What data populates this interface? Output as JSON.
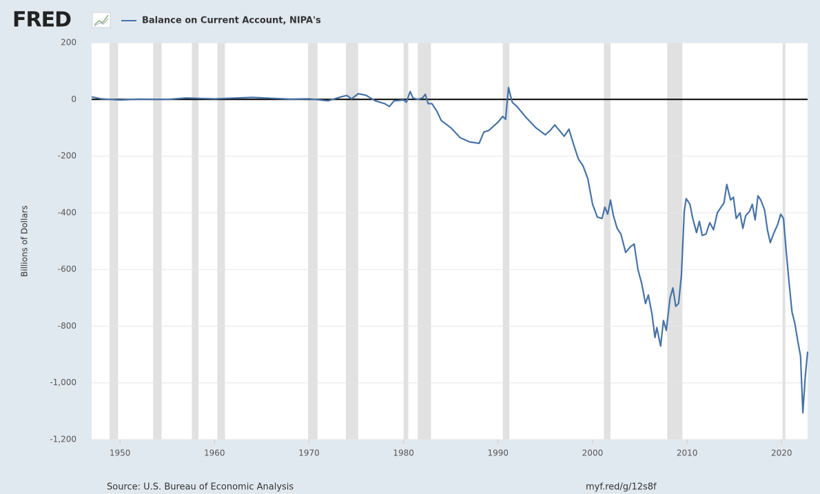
{
  "logo": "FRED",
  "chart_data": {
    "type": "line",
    "title": "Balance on Current Account, NIPA's",
    "y_label": "Billions of Dollars",
    "source": "Source: U.S. Bureau of Economic Analysis",
    "link": "myf.red/g/12s8f",
    "xlim": [
      1947,
      2022.75
    ],
    "xticks": [
      1950,
      1960,
      1970,
      1980,
      1990,
      2000,
      2010,
      2020
    ],
    "ylim": [
      -1200,
      200
    ],
    "yticks": [
      {
        "value": -1200,
        "label": "-1,200"
      },
      {
        "value": -1000,
        "label": "-1,000"
      },
      -800,
      -600,
      -400,
      -200,
      0,
      200
    ],
    "grid": true,
    "recessions": [
      [
        1948.9,
        1949.8
      ],
      [
        1953.5,
        1954.4
      ],
      [
        1957.6,
        1958.3
      ],
      [
        1960.3,
        1961.1
      ],
      [
        1969.9,
        1970.9
      ],
      [
        1973.9,
        1975.2
      ],
      [
        1980.0,
        1980.5
      ],
      [
        1981.5,
        1982.9
      ],
      [
        1990.5,
        1991.2
      ],
      [
        2001.2,
        2001.9
      ],
      [
        2007.9,
        2009.5
      ],
      [
        2020.1,
        2020.4
      ]
    ],
    "x": [
      1947,
      1948,
      1950,
      1952,
      1955,
      1957,
      1960,
      1964,
      1968,
      1970,
      1972,
      1973.5,
      1974,
      1974.5,
      1975.2,
      1976,
      1977,
      1978,
      1978.5,
      1979,
      1980,
      1980.3,
      1980.7,
      1981,
      1981.5,
      1982,
      1982.3,
      1982.6,
      1983,
      1983.5,
      1984,
      1985,
      1986,
      1987,
      1988,
      1988.5,
      1989,
      1990,
      1990.5,
      1990.8,
      1991.1,
      1991.5,
      1992,
      1993,
      1994,
      1995,
      1995.5,
      1996,
      1996.5,
      1997,
      1997.5,
      1998,
      1998.5,
      1999,
      1999.5,
      2000,
      2000.5,
      2001,
      2001.3,
      2001.6,
      2001.9,
      2002.2,
      2002.6,
      2003,
      2003.5,
      2004,
      2004.4,
      2004.8,
      2005.2,
      2005.6,
      2005.9,
      2006.3,
      2006.6,
      2006.8,
      2007.2,
      2007.5,
      2007.8,
      2008.2,
      2008.5,
      2008.8,
      2009.1,
      2009.4,
      2009.7,
      2009.9,
      2010.3,
      2010.6,
      2011,
      2011.3,
      2011.6,
      2012,
      2012.4,
      2012.8,
      2013.2,
      2013.6,
      2013.9,
      2014.2,
      2014.6,
      2014.9,
      2015.2,
      2015.6,
      2015.9,
      2016.2,
      2016.6,
      2016.9,
      2017.2,
      2017.5,
      2017.8,
      2018.2,
      2018.5,
      2018.8,
      2019.2,
      2019.6,
      2019.9,
      2020.2,
      2020.5,
      2020.8,
      2021.1,
      2021.4,
      2021.7,
      2022,
      2022.25,
      2022.5,
      2022.75
    ],
    "series": [
      {
        "name": "Balance on Current Account, NIPA's",
        "color": "#4572a7",
        "values": [
          9,
          2,
          -2,
          1,
          0,
          5,
          2,
          7,
          1,
          2,
          -5,
          10,
          14,
          2,
          20,
          15,
          -5,
          -15,
          -25,
          -5,
          -2,
          -10,
          28,
          5,
          0,
          5,
          18,
          -15,
          -15,
          -40,
          -75,
          -100,
          -135,
          -150,
          -155,
          -115,
          -110,
          -80,
          -60,
          -70,
          42,
          -10,
          -25,
          -65,
          -100,
          -125,
          -110,
          -90,
          -110,
          -130,
          -105,
          -160,
          -210,
          -235,
          -280,
          -370,
          -415,
          -420,
          -380,
          -405,
          -355,
          -410,
          -455,
          -475,
          -540,
          -520,
          -510,
          -600,
          -650,
          -720,
          -690,
          -760,
          -840,
          -805,
          -870,
          -780,
          -815,
          -700,
          -665,
          -730,
          -720,
          -620,
          -395,
          -350,
          -370,
          -420,
          -470,
          -430,
          -480,
          -475,
          -435,
          -460,
          -400,
          -380,
          -365,
          -300,
          -355,
          -345,
          -420,
          -400,
          -455,
          -410,
          -395,
          -370,
          -425,
          -340,
          -355,
          -390,
          -460,
          -505,
          -470,
          -440,
          -405,
          -420,
          -540,
          -650,
          -750,
          -790,
          -850,
          -905,
          -1105,
          -980,
          -890
        ]
      }
    ]
  }
}
